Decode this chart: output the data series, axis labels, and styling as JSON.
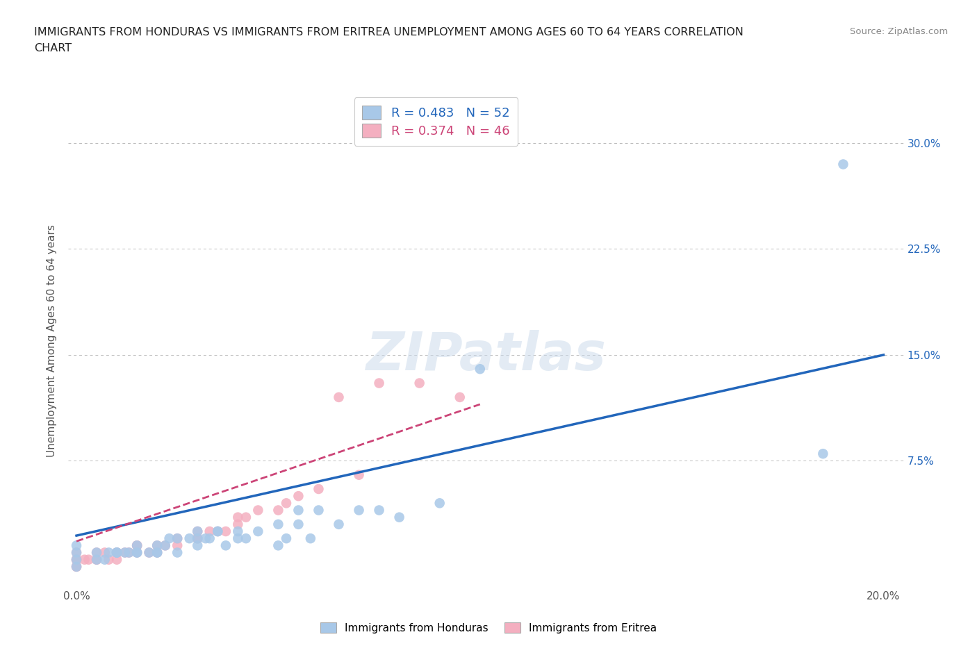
{
  "title_line1": "IMMIGRANTS FROM HONDURAS VS IMMIGRANTS FROM ERITREA UNEMPLOYMENT AMONG AGES 60 TO 64 YEARS CORRELATION",
  "title_line2": "CHART",
  "source": "Source: ZipAtlas.com",
  "ylabel": "Unemployment Among Ages 60 to 64 years",
  "honduras_color": "#a8c8e8",
  "eritrea_color": "#f4afc0",
  "honduras_line_color": "#2266bb",
  "eritrea_line_color": "#cc4477",
  "R_honduras": 0.483,
  "N_honduras": 52,
  "R_eritrea": 0.374,
  "N_eritrea": 46,
  "watermark": "ZIPatlas",
  "background_color": "#ffffff",
  "grid_color": "#bbbbbb",
  "xlim": [
    -0.002,
    0.205
  ],
  "ylim": [
    -0.015,
    0.335
  ],
  "honduras_x": [
    0.0,
    0.0,
    0.0,
    0.0,
    0.005,
    0.005,
    0.007,
    0.008,
    0.01,
    0.01,
    0.01,
    0.012,
    0.013,
    0.015,
    0.015,
    0.015,
    0.018,
    0.02,
    0.02,
    0.02,
    0.022,
    0.023,
    0.025,
    0.025,
    0.028,
    0.03,
    0.03,
    0.03,
    0.032,
    0.033,
    0.035,
    0.035,
    0.037,
    0.04,
    0.04,
    0.042,
    0.045,
    0.05,
    0.05,
    0.052,
    0.055,
    0.055,
    0.058,
    0.06,
    0.065,
    0.07,
    0.075,
    0.08,
    0.09,
    0.1,
    0.185,
    0.19
  ],
  "honduras_y": [
    0.0,
    0.005,
    0.01,
    0.015,
    0.005,
    0.01,
    0.005,
    0.01,
    0.01,
    0.01,
    0.01,
    0.01,
    0.01,
    0.01,
    0.01,
    0.015,
    0.01,
    0.01,
    0.01,
    0.015,
    0.015,
    0.02,
    0.01,
    0.02,
    0.02,
    0.015,
    0.02,
    0.025,
    0.02,
    0.02,
    0.025,
    0.025,
    0.015,
    0.02,
    0.025,
    0.02,
    0.025,
    0.03,
    0.015,
    0.02,
    0.03,
    0.04,
    0.02,
    0.04,
    0.03,
    0.04,
    0.04,
    0.035,
    0.045,
    0.14,
    0.08,
    0.285
  ],
  "eritrea_x": [
    0.0,
    0.0,
    0.0,
    0.0,
    0.0,
    0.0,
    0.002,
    0.003,
    0.005,
    0.005,
    0.005,
    0.007,
    0.008,
    0.01,
    0.01,
    0.01,
    0.012,
    0.013,
    0.015,
    0.015,
    0.015,
    0.018,
    0.02,
    0.02,
    0.022,
    0.025,
    0.025,
    0.03,
    0.03,
    0.03,
    0.033,
    0.035,
    0.037,
    0.04,
    0.04,
    0.042,
    0.045,
    0.05,
    0.052,
    0.055,
    0.06,
    0.065,
    0.07,
    0.075,
    0.085,
    0.095
  ],
  "eritrea_y": [
    0.0,
    0.0,
    0.005,
    0.005,
    0.005,
    0.01,
    0.005,
    0.005,
    0.005,
    0.005,
    0.01,
    0.01,
    0.005,
    0.005,
    0.01,
    0.01,
    0.01,
    0.01,
    0.01,
    0.015,
    0.015,
    0.01,
    0.015,
    0.01,
    0.015,
    0.015,
    0.02,
    0.02,
    0.02,
    0.025,
    0.025,
    0.025,
    0.025,
    0.03,
    0.035,
    0.035,
    0.04,
    0.04,
    0.045,
    0.05,
    0.055,
    0.12,
    0.065,
    0.13,
    0.13,
    0.12
  ],
  "honduras_line_x0": 0.0,
  "honduras_line_x1": 0.2,
  "honduras_line_y0": 0.022,
  "honduras_line_y1": 0.15,
  "eritrea_line_x0": 0.0,
  "eritrea_line_x1": 0.1,
  "eritrea_line_y0": 0.018,
  "eritrea_line_y1": 0.115
}
